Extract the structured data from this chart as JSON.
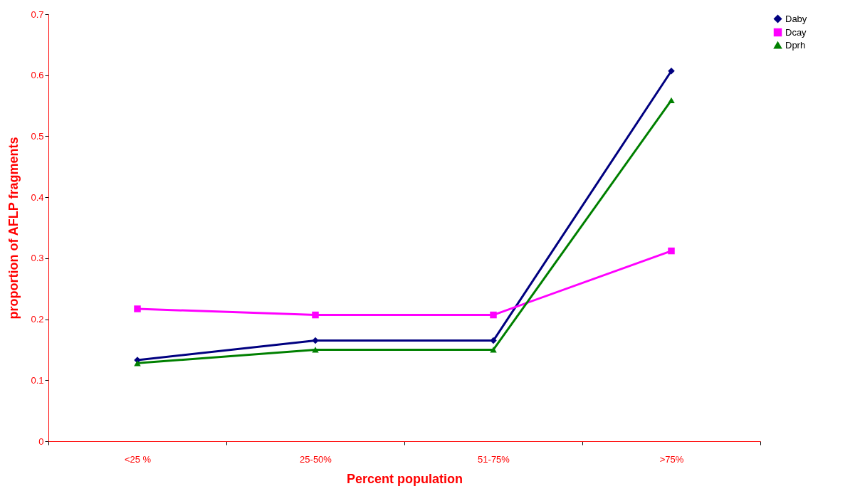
{
  "chart_data": {
    "type": "line",
    "xlabel": "Percent population",
    "ylabel": "proportion of AFLP fragments",
    "categories": [
      "<25 %",
      "25-50%",
      "51-75%",
      ">75%"
    ],
    "series": [
      {
        "name": "Daby",
        "color": "#000080",
        "marker": "diamond",
        "values": [
          0.133,
          0.165,
          0.165,
          0.607
        ]
      },
      {
        "name": "Dcay",
        "color": "#ff00ff",
        "marker": "square",
        "values": [
          0.217,
          0.207,
          0.207,
          0.312
        ]
      },
      {
        "name": "Dprh",
        "color": "#008000",
        "marker": "triangle",
        "values": [
          0.128,
          0.15,
          0.15,
          0.559
        ]
      }
    ],
    "ylim": [
      0,
      0.7
    ],
    "yticks": [
      0,
      0.1,
      0.2,
      0.3,
      0.4,
      0.5,
      0.6,
      0.7
    ],
    "grid": false,
    "legend": "right",
    "line_style": "solid"
  }
}
